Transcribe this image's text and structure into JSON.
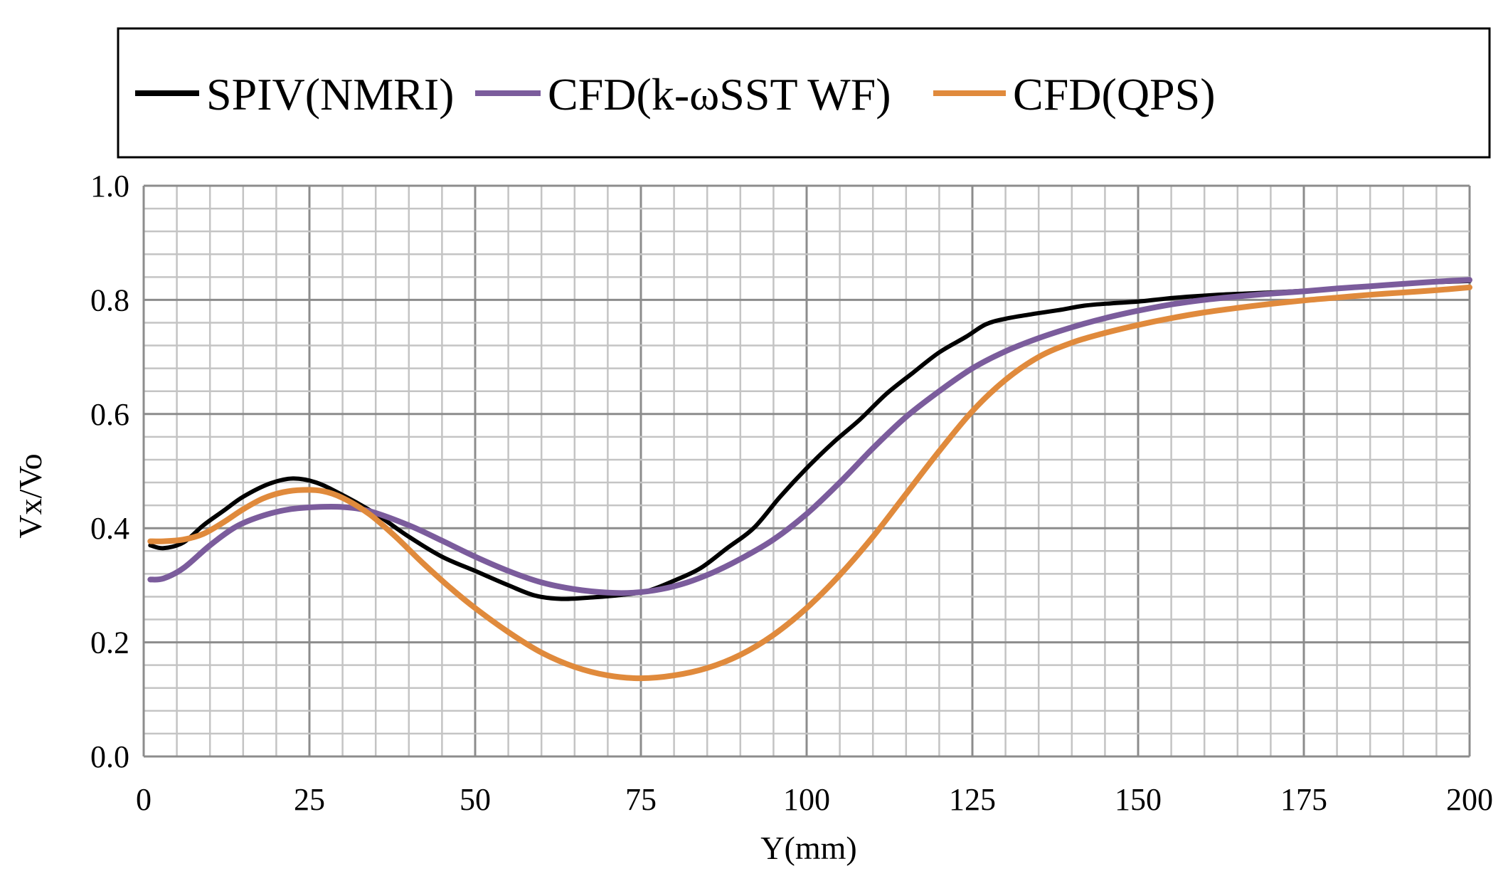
{
  "chart_data": {
    "type": "line",
    "title": "",
    "xlabel": "Y(mm)",
    "ylabel": "Vx/Vo",
    "xlim": [
      0,
      200
    ],
    "ylim": [
      0,
      1.0
    ],
    "grid": true,
    "legend_position": "top",
    "x_ticks": [
      0,
      25,
      50,
      75,
      100,
      125,
      150,
      175,
      200
    ],
    "x_tick_labels": [
      "0",
      "25",
      "50",
      "75",
      "100",
      "125",
      "150",
      "175",
      "200"
    ],
    "y_ticks": [
      0,
      0.2,
      0.4,
      0.6,
      0.8,
      1.0
    ],
    "y_tick_labels": [
      "0.0",
      "0.2",
      "0.4",
      "0.6",
      "0.8",
      "1.0"
    ],
    "series": [
      {
        "name": "SPIV(NMRI)",
        "color": "#000000",
        "x": [
          1,
          3,
          6,
          9,
          12,
          15,
          19,
          22.5,
          26,
          30,
          35,
          40,
          45,
          50,
          55,
          59,
          63,
          68,
          72,
          76,
          80,
          84,
          88,
          92,
          96,
          100,
          104,
          108,
          112,
          116,
          120,
          124,
          127,
          130,
          134,
          138,
          142,
          146,
          150,
          154,
          158,
          162,
          166,
          170,
          175,
          180,
          185,
          190,
          195,
          200
        ],
        "values": [
          0.37,
          0.365,
          0.375,
          0.405,
          0.43,
          0.455,
          0.478,
          0.487,
          0.48,
          0.458,
          0.425,
          0.385,
          0.35,
          0.325,
          0.3,
          0.282,
          0.276,
          0.279,
          0.283,
          0.29,
          0.308,
          0.33,
          0.365,
          0.4,
          0.455,
          0.505,
          0.55,
          0.59,
          0.635,
          0.672,
          0.708,
          0.735,
          0.757,
          0.767,
          0.775,
          0.782,
          0.79,
          0.794,
          0.797,
          0.802,
          0.806,
          0.809,
          0.811,
          0.813,
          0.816,
          0.82,
          0.824,
          0.828,
          0.831,
          0.833
        ]
      },
      {
        "name": "CFD(k-ωSST WF)",
        "color": "#7b5c9c",
        "x": [
          1,
          3,
          6,
          10,
          14,
          18,
          22,
          26,
          30,
          34,
          40,
          45,
          50,
          55,
          60,
          65,
          70,
          74,
          78,
          82,
          86,
          90,
          95,
          100,
          105,
          110,
          115,
          120,
          125,
          130,
          135,
          140,
          145,
          150,
          155,
          160,
          165,
          170,
          175,
          180,
          185,
          190,
          195,
          200
        ],
        "values": [
          0.31,
          0.312,
          0.33,
          0.37,
          0.403,
          0.422,
          0.433,
          0.437,
          0.437,
          0.43,
          0.405,
          0.378,
          0.35,
          0.325,
          0.305,
          0.293,
          0.287,
          0.287,
          0.293,
          0.305,
          0.323,
          0.346,
          0.38,
          0.425,
          0.48,
          0.54,
          0.595,
          0.64,
          0.68,
          0.71,
          0.733,
          0.752,
          0.768,
          0.781,
          0.792,
          0.8,
          0.806,
          0.811,
          0.815,
          0.82,
          0.824,
          0.828,
          0.832,
          0.835
        ]
      },
      {
        "name": "CFD(QPS)",
        "color": "#e08a3c",
        "x": [
          1,
          3,
          6,
          9,
          12,
          15,
          18,
          21,
          24,
          27,
          30,
          34,
          38,
          42,
          46,
          50,
          55,
          60,
          65,
          70,
          75,
          80,
          85,
          90,
          95,
          100,
          105,
          110,
          115,
          120,
          125,
          130,
          135,
          140,
          145,
          150,
          155,
          160,
          165,
          170,
          175,
          180,
          185,
          190,
          195,
          200
        ],
        "values": [
          0.377,
          0.377,
          0.38,
          0.39,
          0.41,
          0.433,
          0.452,
          0.463,
          0.467,
          0.465,
          0.453,
          0.425,
          0.385,
          0.34,
          0.298,
          0.26,
          0.218,
          0.182,
          0.157,
          0.142,
          0.137,
          0.142,
          0.155,
          0.178,
          0.213,
          0.26,
          0.318,
          0.385,
          0.46,
          0.535,
          0.605,
          0.66,
          0.7,
          0.725,
          0.742,
          0.756,
          0.768,
          0.778,
          0.786,
          0.793,
          0.799,
          0.804,
          0.809,
          0.813,
          0.817,
          0.822
        ]
      }
    ]
  }
}
